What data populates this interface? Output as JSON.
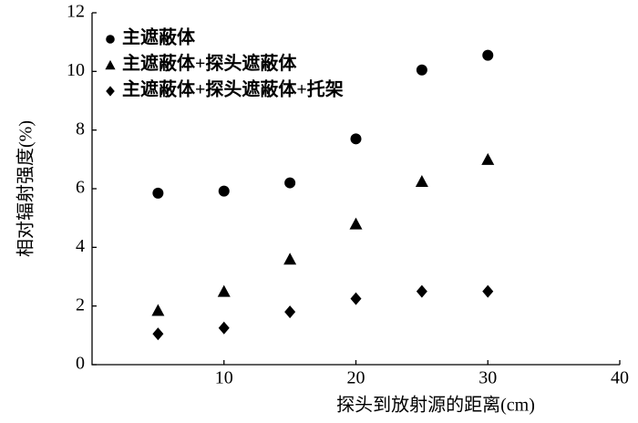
{
  "chart_data": {
    "type": "scatter",
    "xlabel": "探头到放射源的距离(cm)",
    "ylabel": "相对辐射强度(%)",
    "x": [
      5,
      10,
      15,
      20,
      25,
      30
    ],
    "series": [
      {
        "name": "主遮蔽体",
        "color": "#000000",
        "marker": "circle",
        "values": [
          5.85,
          5.92,
          6.2,
          7.7,
          10.05,
          10.55
        ]
      },
      {
        "name": "主遮蔽体+探头遮蔽体",
        "color": "#000000",
        "marker": "triangle",
        "values": [
          1.85,
          2.5,
          3.6,
          4.8,
          6.25,
          7.0
        ]
      },
      {
        "name": "主遮蔽体+探头遮蔽体+托架",
        "color": "#000000",
        "marker": "diamond",
        "values": [
          1.05,
          1.25,
          1.8,
          2.25,
          2.5,
          2.5
        ]
      }
    ],
    "xlim": [
      0,
      40
    ],
    "xticks": [
      10,
      20,
      30,
      40
    ],
    "ylim": [
      0,
      12
    ],
    "yticks": [
      0,
      2,
      4,
      6,
      8,
      10,
      12
    ],
    "grid": false,
    "legend": "upper left"
  }
}
